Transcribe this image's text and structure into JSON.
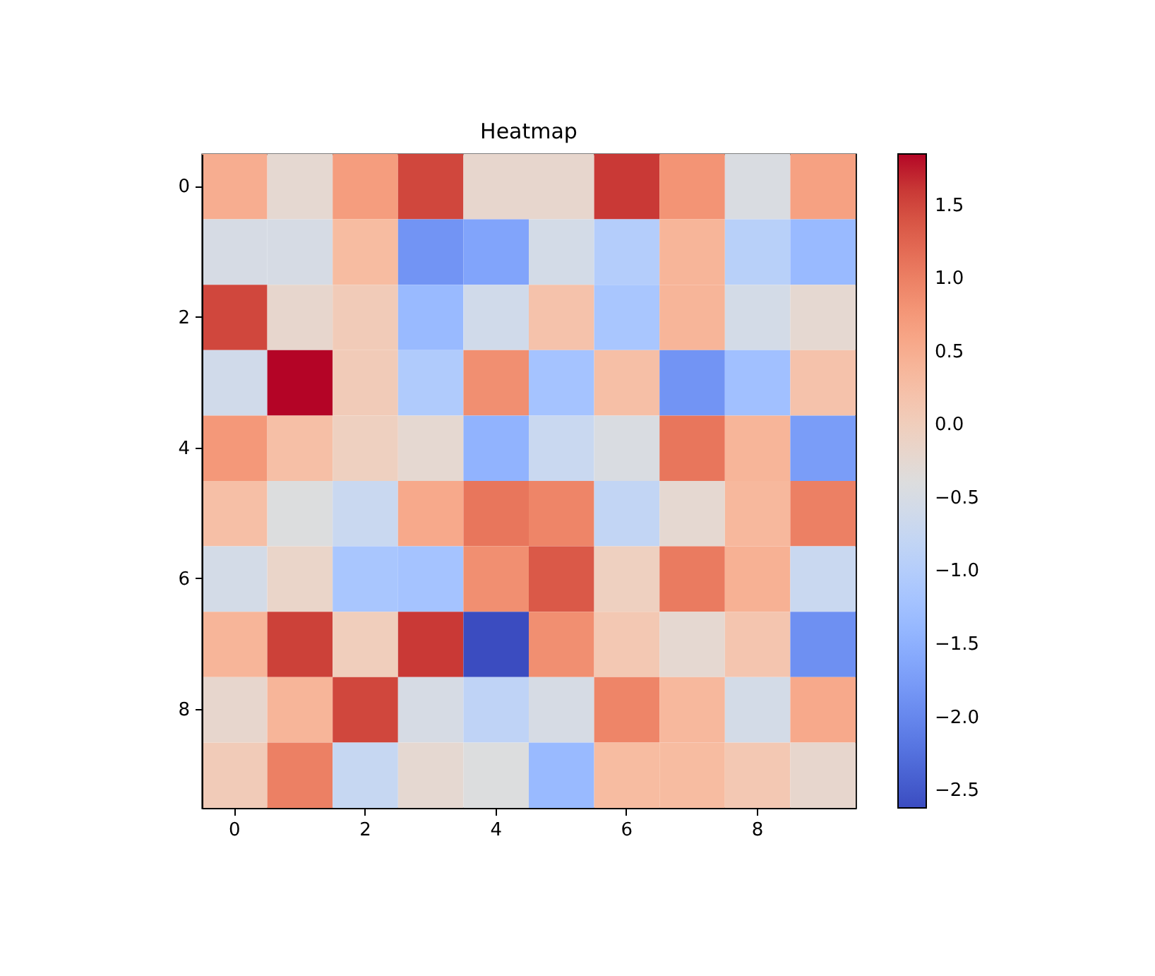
{
  "chart_data": {
    "type": "heatmap",
    "title": "Heatmap",
    "categories": [
      "0",
      null,
      "2",
      null,
      "4",
      null,
      "6",
      null,
      "8",
      null
    ],
    "y_categories": [
      "0",
      null,
      "2",
      null,
      "4",
      null,
      "6",
      null,
      "8",
      null
    ],
    "cells": [
      [
        0.5,
        -0.25,
        0.7,
        1.5,
        -0.2,
        -0.2,
        1.6,
        0.8,
        -0.45,
        0.65
      ],
      [
        -0.5,
        -0.5,
        0.3,
        -1.85,
        -1.65,
        -0.55,
        -1.0,
        0.4,
        -0.95,
        -1.35
      ],
      [
        1.5,
        -0.2,
        0.05,
        -1.35,
        -0.6,
        0.2,
        -1.15,
        0.4,
        -0.55,
        -0.25
      ],
      [
        -0.6,
        1.85,
        0.05,
        -1.05,
        0.85,
        -1.2,
        0.25,
        -1.85,
        -1.25,
        0.2
      ],
      [
        0.75,
        0.25,
        -0.05,
        -0.25,
        -1.45,
        -0.7,
        -0.45,
        1.1,
        0.4,
        -1.75
      ],
      [
        0.25,
        -0.4,
        -0.7,
        0.55,
        1.1,
        0.95,
        -0.8,
        -0.25,
        0.35,
        1.0
      ],
      [
        -0.55,
        -0.15,
        -1.15,
        -1.2,
        0.85,
        1.35,
        -0.05,
        1.05,
        0.45,
        -0.7
      ],
      [
        0.4,
        1.55,
        0.0,
        1.6,
        -2.62,
        0.85,
        0.1,
        -0.25,
        0.15,
        -1.9
      ],
      [
        -0.2,
        0.4,
        1.5,
        -0.5,
        -0.85,
        -0.5,
        0.95,
        0.35,
        -0.55,
        0.55
      ],
      [
        0.05,
        1.0,
        -0.75,
        -0.25,
        -0.4,
        -1.35,
        0.3,
        0.3,
        0.1,
        -0.2
      ]
    ],
    "clim": [
      -2.62,
      1.85
    ],
    "cticks": [
      {
        "value": -2.5,
        "label": "−2.5"
      },
      {
        "value": -2.0,
        "label": "−2.0"
      },
      {
        "value": -1.5,
        "label": "−1.5"
      },
      {
        "value": -1.0,
        "label": "−1.0"
      },
      {
        "value": -0.5,
        "label": "−0.5"
      },
      {
        "value": 0.0,
        "label": "0.0"
      },
      {
        "value": 0.5,
        "label": "0.5"
      },
      {
        "value": 1.0,
        "label": "1.0"
      },
      {
        "value": 1.5,
        "label": "1.5"
      }
    ]
  }
}
